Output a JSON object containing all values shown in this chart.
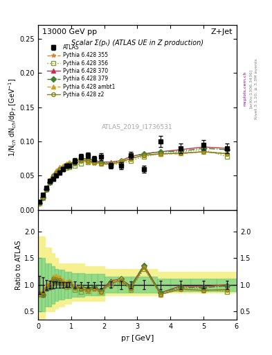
{
  "title_left": "13000 GeV pp",
  "title_right": "Z+Jet",
  "plot_title": "Scalar Σ(pₜ) (ATLAS UE in Z production)",
  "ylabel_main": "1/N$_{ch}$ dN$_{ch}$/dp$_T$ [GeV$^{-1}$]",
  "ylabel_ratio": "Ratio to ATLAS",
  "xlabel": "p$_T$ [GeV]",
  "watermark": "ATLAS_2019_I1736531",
  "right_label": "Rivet 3.1.10; ≥ 3.3M events",
  "arxiv_label": "[arXiv:1306.3436]",
  "mcplots_label": "mcplots.cern.ch",
  "ylim_main": [
    0.0,
    0.27
  ],
  "ylim_ratio": [
    0.35,
    2.4
  ],
  "yticks_main": [
    0.0,
    0.05,
    0.1,
    0.15,
    0.2,
    0.25
  ],
  "yticks_ratio": [
    0.5,
    1.0,
    1.5,
    2.0
  ],
  "xlim": [
    0,
    6
  ],
  "xticks": [
    0,
    1,
    2,
    3,
    4,
    5,
    6
  ],
  "atlas_x": [
    0.05,
    0.15,
    0.25,
    0.35,
    0.45,
    0.55,
    0.65,
    0.75,
    0.85,
    0.95,
    1.1,
    1.3,
    1.5,
    1.7,
    1.9,
    2.2,
    2.5,
    2.8,
    3.2,
    3.7,
    4.3,
    5.0,
    5.7
  ],
  "atlas_y": [
    0.012,
    0.022,
    0.032,
    0.042,
    0.045,
    0.05,
    0.055,
    0.06,
    0.065,
    0.065,
    0.072,
    0.078,
    0.08,
    0.075,
    0.078,
    0.065,
    0.065,
    0.08,
    0.06,
    0.1,
    0.09,
    0.095,
    0.09
  ],
  "atlas_yerr": [
    0.002,
    0.003,
    0.003,
    0.003,
    0.003,
    0.003,
    0.003,
    0.003,
    0.003,
    0.003,
    0.004,
    0.004,
    0.004,
    0.004,
    0.005,
    0.004,
    0.005,
    0.005,
    0.005,
    0.008,
    0.007,
    0.007,
    0.007
  ],
  "mc_x": [
    0.05,
    0.15,
    0.25,
    0.35,
    0.45,
    0.55,
    0.65,
    0.75,
    0.85,
    0.95,
    1.1,
    1.3,
    1.5,
    1.7,
    1.9,
    2.2,
    2.5,
    2.8,
    3.2,
    3.7,
    4.3,
    5.0,
    5.7
  ],
  "p355_y": [
    0.01,
    0.018,
    0.03,
    0.042,
    0.05,
    0.055,
    0.06,
    0.062,
    0.065,
    0.067,
    0.068,
    0.072,
    0.07,
    0.068,
    0.067,
    0.067,
    0.07,
    0.075,
    0.08,
    0.082,
    0.082,
    0.085,
    0.082
  ],
  "p356_y": [
    0.01,
    0.018,
    0.03,
    0.042,
    0.048,
    0.052,
    0.058,
    0.06,
    0.062,
    0.063,
    0.065,
    0.068,
    0.07,
    0.07,
    0.068,
    0.065,
    0.068,
    0.072,
    0.078,
    0.082,
    0.085,
    0.088,
    0.078
  ],
  "p370_y": [
    0.01,
    0.018,
    0.03,
    0.04,
    0.048,
    0.053,
    0.058,
    0.062,
    0.065,
    0.068,
    0.07,
    0.075,
    0.075,
    0.072,
    0.07,
    0.07,
    0.072,
    0.078,
    0.082,
    0.085,
    0.088,
    0.092,
    0.09
  ],
  "p379_y": [
    0.01,
    0.018,
    0.03,
    0.04,
    0.048,
    0.053,
    0.058,
    0.062,
    0.065,
    0.068,
    0.07,
    0.075,
    0.075,
    0.072,
    0.07,
    0.068,
    0.072,
    0.078,
    0.082,
    0.085,
    0.086,
    0.09,
    0.088
  ],
  "pambt1_y": [
    0.01,
    0.02,
    0.032,
    0.044,
    0.052,
    0.058,
    0.063,
    0.065,
    0.068,
    0.07,
    0.072,
    0.075,
    0.072,
    0.07,
    0.068,
    0.068,
    0.072,
    0.075,
    0.08,
    0.082,
    0.083,
    0.085,
    0.083
  ],
  "pz2_y": [
    0.01,
    0.018,
    0.03,
    0.042,
    0.05,
    0.055,
    0.06,
    0.062,
    0.065,
    0.067,
    0.068,
    0.072,
    0.072,
    0.07,
    0.068,
    0.067,
    0.07,
    0.075,
    0.08,
    0.082,
    0.083,
    0.085,
    0.082
  ],
  "band_yellow_lo": [
    0.3,
    0.3,
    0.5,
    0.5,
    0.5,
    0.55,
    0.6,
    0.6,
    0.65,
    0.65,
    0.7,
    0.7,
    0.7,
    0.7,
    0.7,
    0.8,
    0.8,
    0.8,
    0.85,
    0.85,
    0.85,
    0.85,
    0.85
  ],
  "band_yellow_hi": [
    1.9,
    1.9,
    1.7,
    1.7,
    1.6,
    1.5,
    1.4,
    1.4,
    1.4,
    1.4,
    1.4,
    1.4,
    1.35,
    1.35,
    1.35,
    1.3,
    1.3,
    1.3,
    1.25,
    1.25,
    1.25,
    1.25,
    1.25
  ],
  "band_green_lo": [
    0.5,
    0.5,
    0.6,
    0.6,
    0.65,
    0.7,
    0.72,
    0.72,
    0.75,
    0.75,
    0.78,
    0.78,
    0.8,
    0.8,
    0.8,
    0.85,
    0.85,
    0.85,
    0.88,
    0.88,
    0.88,
    0.88,
    0.88
  ],
  "band_green_hi": [
    1.5,
    1.5,
    1.4,
    1.4,
    1.35,
    1.3,
    1.28,
    1.28,
    1.25,
    1.25,
    1.22,
    1.22,
    1.2,
    1.2,
    1.2,
    1.15,
    1.15,
    1.15,
    1.12,
    1.12,
    1.12,
    1.12,
    1.12
  ],
  "colors": {
    "p355": "#e08030",
    "p356": "#80a030",
    "p370": "#c03050",
    "p379": "#408030",
    "pambt1": "#d0a020",
    "pz2": "#808020"
  },
  "markers": {
    "p355": "*",
    "p356": "s",
    "p370": "^",
    "p379": "D",
    "pambt1": "^",
    "pz2": "o"
  },
  "linestyles": {
    "p355": "--",
    "p356": ":",
    "p370": "-",
    "p379": "-.",
    "pambt1": "--",
    "pz2": "-"
  },
  "legend_labels": {
    "atlas": "ATLAS",
    "p355": "Pythia 6.428 355",
    "p356": "Pythia 6.428 356",
    "p370": "Pythia 6.428 370",
    "p379": "Pythia 6.428 379",
    "pambt1": "Pythia 6.428 ambt1",
    "pz2": "Pythia 6.428 z2"
  },
  "band_x_edges": [
    0.0,
    0.1,
    0.2,
    0.3,
    0.4,
    0.5,
    0.6,
    0.7,
    0.8,
    0.9,
    1.0,
    1.2,
    1.4,
    1.6,
    1.8,
    2.0,
    2.4,
    2.8,
    3.6,
    4.0,
    4.6,
    5.4,
    6.0
  ]
}
